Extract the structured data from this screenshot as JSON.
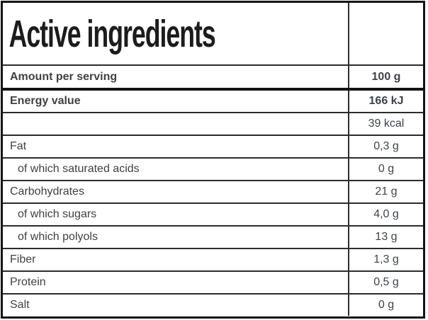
{
  "header": {
    "title": "Active ingredients"
  },
  "table": {
    "amount_row": {
      "label": "Amount per serving",
      "value": "100 g",
      "bold": true
    },
    "rows": [
      {
        "label": "Energy value",
        "value": "166 kJ",
        "bold": true,
        "indent": false
      },
      {
        "label": "",
        "value": "39 kcal",
        "bold": false,
        "indent": false
      },
      {
        "label": "Fat",
        "value": "0,3 g",
        "bold": false,
        "indent": false
      },
      {
        "label": "of which saturated acids",
        "value": "0 g",
        "bold": false,
        "indent": true
      },
      {
        "label": "Carbohydrates",
        "value": "21 g",
        "bold": false,
        "indent": false
      },
      {
        "label": "of which sugars",
        "value": "4,0 g",
        "bold": false,
        "indent": true
      },
      {
        "label": "of which polyols",
        "value": "13 g",
        "bold": false,
        "indent": true
      },
      {
        "label": "Fiber",
        "value": "1,3 g",
        "bold": false,
        "indent": false
      },
      {
        "label": "Protein",
        "value": "0,5 g",
        "bold": false,
        "indent": false
      },
      {
        "label": "Salt",
        "value": "0 g",
        "bold": false,
        "indent": false
      }
    ]
  },
  "colors": {
    "border_thick": "#141414",
    "border_thin": "#2c2c2c",
    "header_text": "#1c1c1c",
    "label_text": "#414141",
    "value_text": "#3e434b",
    "background": "#ffffff"
  }
}
